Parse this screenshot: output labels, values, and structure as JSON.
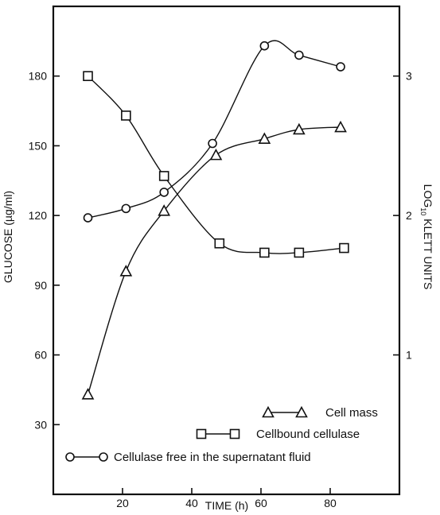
{
  "chart_data": {
    "type": "line",
    "x_axis": {
      "label": "TIME (h)",
      "range": [
        0,
        100
      ],
      "ticks": [
        20,
        40,
        60,
        80
      ]
    },
    "y_left": {
      "label": "GLUCOSE (µg/ml)",
      "range": [
        0,
        210
      ],
      "ticks": [
        30,
        60,
        90,
        120,
        150,
        180
      ]
    },
    "y_right": {
      "label_main": "LOG",
      "label_sub": "10",
      "label_rest": " KLETT UNITS",
      "range": [
        0,
        3.5
      ],
      "ticks": [
        1,
        2,
        3
      ]
    },
    "grid": false,
    "legend_position": "bottom-right",
    "series": [
      {
        "name": "Cell mass",
        "marker": "triangle",
        "axis": "left",
        "points": [
          [
            10,
            43
          ],
          [
            21,
            96
          ],
          [
            32,
            122
          ],
          [
            47,
            146
          ],
          [
            61,
            153
          ],
          [
            71,
            157
          ],
          [
            83,
            158
          ]
        ]
      },
      {
        "name": "Cellbound cellulase",
        "marker": "square",
        "axis": "left",
        "points": [
          [
            10,
            180
          ],
          [
            21,
            163
          ],
          [
            32,
            137
          ],
          [
            48,
            108
          ],
          [
            61,
            104
          ],
          [
            71,
            104
          ],
          [
            84,
            106
          ]
        ]
      },
      {
        "name": "Cellulase free in the supernatant fluid",
        "marker": "circle",
        "axis": "left",
        "points": [
          [
            10,
            119
          ],
          [
            21,
            123
          ],
          [
            32,
            130
          ],
          [
            46,
            151
          ],
          [
            61,
            193
          ],
          [
            71,
            189
          ],
          [
            83,
            184
          ]
        ]
      }
    ]
  }
}
